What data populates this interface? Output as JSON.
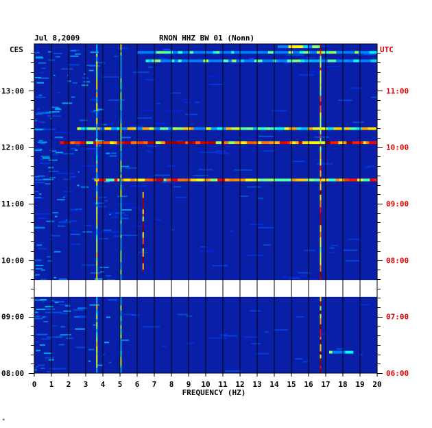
{
  "chart_data": {
    "type": "heatmap",
    "date": "Jul 8,2009",
    "title": "RNON HHZ BW 01 (Nonn)",
    "left_label": "CES",
    "right_label": "UTC",
    "xlabel": "FREQUENCY (HZ)",
    "xlim": [
      0,
      20
    ],
    "x_ticks": [
      0,
      1,
      2,
      3,
      4,
      5,
      6,
      7,
      8,
      9,
      10,
      11,
      12,
      13,
      14,
      15,
      16,
      17,
      18,
      19,
      20
    ],
    "ylim_hours_ces": [
      8.0,
      13.83
    ],
    "left_ticks": [
      {
        "label": "08:00",
        "hour": 8
      },
      {
        "label": "09:00",
        "hour": 9
      },
      {
        "label": "10:00",
        "hour": 10
      },
      {
        "label": "11:00",
        "hour": 11
      },
      {
        "label": "12:00",
        "hour": 12
      },
      {
        "label": "13:00",
        "hour": 13
      }
    ],
    "right_ticks": [
      {
        "label": "06:00",
        "hour": 8
      },
      {
        "label": "07:00",
        "hour": 9
      },
      {
        "label": "08:00",
        "hour": 10
      },
      {
        "label": "09:00",
        "hour": 11
      },
      {
        "label": "10:00",
        "hour": 12
      },
      {
        "label": "11:00",
        "hour": 13
      }
    ],
    "data_gap_hours_ces": [
      9.35,
      9.65
    ],
    "grid": true,
    "colors": {
      "background": "#0a1fa8",
      "grid": "#000000",
      "utc_label": "#dd0000",
      "text": "#000000"
    },
    "horizontal_events": [
      {
        "hour": 13.68,
        "from_hz": 6.0,
        "to_hz": 20.0,
        "intensity": 0.35
      },
      {
        "hour": 13.78,
        "from_hz": 14.2,
        "to_hz": 16.3,
        "intensity": 0.45
      },
      {
        "hour": 13.53,
        "from_hz": 6.5,
        "to_hz": 20.0,
        "intensity": 0.35
      },
      {
        "hour": 12.33,
        "from_hz": 2.5,
        "to_hz": 19.8,
        "intensity": 0.55
      },
      {
        "hour": 12.08,
        "from_hz": 1.5,
        "to_hz": 20.0,
        "intensity": 0.85
      },
      {
        "hour": 11.42,
        "from_hz": 3.5,
        "to_hz": 19.9,
        "intensity": 0.75
      },
      {
        "hour": 8.37,
        "from_hz": 17.2,
        "to_hz": 18.4,
        "intensity": 0.4
      }
    ],
    "vertical_events": [
      {
        "hz": 3.65,
        "from_hour": 8.0,
        "to_hour": 13.8,
        "intensity": 0.5
      },
      {
        "hz": 5.05,
        "from_hour": 8.0,
        "to_hour": 13.8,
        "intensity": 0.45
      },
      {
        "hz": 6.35,
        "from_hour": 9.8,
        "to_hour": 11.2,
        "intensity": 0.9
      },
      {
        "hz": 16.7,
        "from_hour": 8.0,
        "to_hour": 13.8,
        "intensity": 0.85
      }
    ]
  }
}
